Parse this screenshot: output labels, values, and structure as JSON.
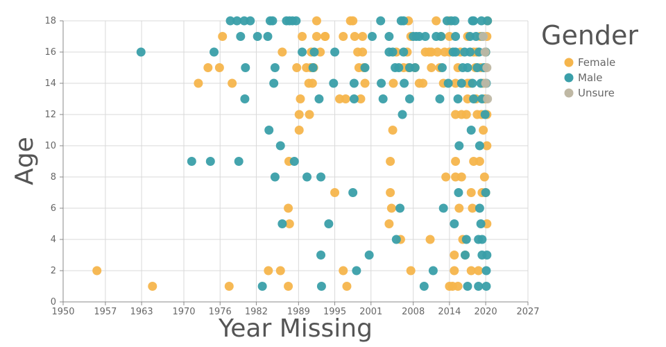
{
  "chart_data": {
    "type": "scatter",
    "xlabel": "Year Missing",
    "ylabel": "Age",
    "legend_title": "Gender",
    "legend_position": "top-right",
    "grid": true,
    "xlim": [
      1950,
      2027
    ],
    "ylim": [
      0,
      18
    ],
    "x_ticks": [
      "1950",
      "1957",
      "1963",
      "1970",
      "1976",
      "1982",
      "1989",
      "1995",
      "2001",
      "2008",
      "2014",
      "2020",
      "2027"
    ],
    "y_ticks": [
      "0",
      "2",
      "4",
      "6",
      "8",
      "10",
      "12",
      "14",
      "16",
      "18"
    ],
    "colors": {
      "Female": "#f5b54c",
      "Male": "#3a9fa9",
      "Unsure": "#bfb8a4"
    },
    "series": [
      {
        "name": "Female",
        "points": [
          [
            1955.6,
            2
          ],
          [
            1964.8,
            1
          ],
          [
            1977.5,
            1
          ],
          [
            1972.4,
            14
          ],
          [
            1974.0,
            15
          ],
          [
            1975.9,
            15
          ],
          [
            1976.4,
            17
          ],
          [
            1978.0,
            14
          ],
          [
            1984.0,
            2
          ],
          [
            1986.0,
            2
          ],
          [
            1986.3,
            16
          ],
          [
            1987.3,
            1
          ],
          [
            1987.4,
            9
          ],
          [
            1987.3,
            6
          ],
          [
            1987.5,
            5
          ],
          [
            1988.7,
            15
          ],
          [
            1989.1,
            11
          ],
          [
            1989.1,
            12
          ],
          [
            1989.3,
            13
          ],
          [
            1989.6,
            17
          ],
          [
            1990.3,
            15
          ],
          [
            1990.7,
            14
          ],
          [
            1990.8,
            12
          ],
          [
            1991.0,
            15
          ],
          [
            1991.3,
            14
          ],
          [
            1991.5,
            15
          ],
          [
            1991.1,
            16
          ],
          [
            1992.0,
            18
          ],
          [
            1992.0,
            17
          ],
          [
            1992.6,
            16
          ],
          [
            1993.4,
            17
          ],
          [
            1993.4,
            17
          ],
          [
            1995.0,
            7
          ],
          [
            1995.8,
            13
          ],
          [
            1996.4,
            2
          ],
          [
            1996.4,
            17
          ],
          [
            1996.8,
            13
          ],
          [
            1997.0,
            1
          ],
          [
            1997.6,
            18
          ],
          [
            1998.0,
            18
          ],
          [
            1998.3,
            17
          ],
          [
            1998.8,
            16
          ],
          [
            1999.0,
            15
          ],
          [
            1999.3,
            13
          ],
          [
            1999.6,
            16
          ],
          [
            1999.6,
            17
          ],
          [
            1999.8,
            15
          ],
          [
            2000.0,
            14
          ],
          [
            2004.0,
            5
          ],
          [
            2004.2,
            7
          ],
          [
            2004.2,
            9
          ],
          [
            2004.4,
            6
          ],
          [
            2004.6,
            11
          ],
          [
            2004.7,
            14
          ],
          [
            2005.2,
            16
          ],
          [
            2005.9,
            4
          ],
          [
            2006.4,
            15
          ],
          [
            2007.0,
            16
          ],
          [
            2007.2,
            15
          ],
          [
            2007.2,
            18
          ],
          [
            2007.6,
            2
          ],
          [
            2007.6,
            17
          ],
          [
            2008.3,
            15
          ],
          [
            2009.0,
            14
          ],
          [
            2009.6,
            14
          ],
          [
            2010.0,
            16
          ],
          [
            2010.6,
            16
          ],
          [
            2010.8,
            4
          ],
          [
            2011.0,
            15
          ],
          [
            2011.0,
            16
          ],
          [
            2011.8,
            18
          ],
          [
            2012.0,
            16
          ],
          [
            2012.4,
            15
          ],
          [
            2012.6,
            17
          ],
          [
            2013.0,
            14
          ],
          [
            2013.2,
            16
          ],
          [
            2013.4,
            8
          ],
          [
            2014.0,
            16
          ],
          [
            2014.0,
            18
          ],
          [
            2014.0,
            17
          ],
          [
            2014.0,
            1
          ],
          [
            2014.5,
            1
          ],
          [
            2014.8,
            2
          ],
          [
            2014.8,
            3
          ],
          [
            2015.0,
            9
          ],
          [
            2015.0,
            8
          ],
          [
            2015.0,
            14
          ],
          [
            2015.0,
            12
          ],
          [
            2015.4,
            15
          ],
          [
            2015.4,
            1
          ],
          [
            2015.6,
            6
          ],
          [
            2015.8,
            16
          ],
          [
            2016.0,
            8
          ],
          [
            2016.0,
            12
          ],
          [
            2016.2,
            4
          ],
          [
            2016.6,
            3
          ],
          [
            2016.8,
            12
          ],
          [
            2017.0,
            14
          ],
          [
            2017.0,
            17
          ],
          [
            2017.0,
            13
          ],
          [
            2017.4,
            14
          ],
          [
            2017.6,
            7
          ],
          [
            2017.6,
            2
          ],
          [
            2017.8,
            6
          ],
          [
            2018.0,
            9
          ],
          [
            2018.0,
            16
          ],
          [
            2018.3,
            15
          ],
          [
            2018.4,
            13
          ],
          [
            2018.5,
            16
          ],
          [
            2018.6,
            12
          ],
          [
            2018.8,
            2
          ],
          [
            2019.0,
            9
          ],
          [
            2019.1,
            17
          ],
          [
            2019.2,
            15
          ],
          [
            2019.3,
            12
          ],
          [
            2019.4,
            7
          ],
          [
            2019.6,
            11
          ],
          [
            2019.6,
            14
          ],
          [
            2019.8,
            8
          ],
          [
            2019.9,
            13
          ],
          [
            2020.0,
            16
          ],
          [
            2020.0,
            7
          ],
          [
            2020.0,
            15
          ],
          [
            2020.2,
            10
          ],
          [
            2020.2,
            17
          ],
          [
            2020.2,
            5
          ],
          [
            2020.2,
            12
          ],
          [
            2020.3,
            18
          ]
        ]
      },
      {
        "name": "Male",
        "points": [
          [
            1962.9,
            16
          ],
          [
            1971.3,
            9
          ],
          [
            1974.4,
            9
          ],
          [
            1975.0,
            16
          ],
          [
            1977.7,
            18
          ],
          [
            1978.8,
            18
          ],
          [
            1979.1,
            9
          ],
          [
            1979.4,
            17
          ],
          [
            1980.0,
            18
          ],
          [
            1980.2,
            15
          ],
          [
            1980.1,
            13
          ],
          [
            1981.0,
            18
          ],
          [
            1982.2,
            17
          ],
          [
            1983.0,
            1
          ],
          [
            1983.9,
            17
          ],
          [
            1984.1,
            11
          ],
          [
            1984.3,
            18
          ],
          [
            1984.7,
            18
          ],
          [
            1984.9,
            14
          ],
          [
            1985.1,
            8
          ],
          [
            1985.1,
            15
          ],
          [
            1986.0,
            10
          ],
          [
            1986.3,
            5
          ],
          [
            1987.0,
            18
          ],
          [
            1987.5,
            18
          ],
          [
            1988.0,
            18
          ],
          [
            1988.3,
            9
          ],
          [
            1988.6,
            18
          ],
          [
            1989.6,
            16
          ],
          [
            1990.4,
            8
          ],
          [
            1991.4,
            15
          ],
          [
            1991.6,
            16
          ],
          [
            1992.4,
            13
          ],
          [
            1992.7,
            3
          ],
          [
            1992.7,
            8
          ],
          [
            1992.8,
            1
          ],
          [
            1994.0,
            5
          ],
          [
            1994.8,
            14
          ],
          [
            1995.0,
            16
          ],
          [
            1998.0,
            7
          ],
          [
            1998.2,
            14
          ],
          [
            1998.6,
            2
          ],
          [
            1998.2,
            13
          ],
          [
            2000.0,
            15
          ],
          [
            2000.7,
            3
          ],
          [
            2001.2,
            17
          ],
          [
            2002.6,
            18
          ],
          [
            2002.7,
            14
          ],
          [
            2003.0,
            13
          ],
          [
            2004.0,
            16
          ],
          [
            2004.0,
            17
          ],
          [
            2004.6,
            16
          ],
          [
            2005.0,
            15
          ],
          [
            2005.2,
            4
          ],
          [
            2005.8,
            6
          ],
          [
            2005.6,
            15
          ],
          [
            2006.0,
            18
          ],
          [
            2006.2,
            12
          ],
          [
            2006.4,
            16
          ],
          [
            2006.5,
            14
          ],
          [
            2006.4,
            18
          ],
          [
            2007.4,
            13
          ],
          [
            2007.4,
            15
          ],
          [
            2008.0,
            17
          ],
          [
            2008.3,
            15
          ],
          [
            2008.5,
            17
          ],
          [
            2009.0,
            17
          ],
          [
            2009.8,
            1
          ],
          [
            2010.0,
            17
          ],
          [
            2011.3,
            2
          ],
          [
            2011.8,
            17
          ],
          [
            2012.4,
            13
          ],
          [
            2012.6,
            17
          ],
          [
            2012.8,
            15
          ],
          [
            2013.0,
            6
          ],
          [
            2013.6,
            18
          ],
          [
            2013.8,
            14
          ],
          [
            2014.3,
            18
          ],
          [
            2014.6,
            16
          ],
          [
            2014.8,
            5
          ],
          [
            2014.9,
            18
          ],
          [
            2015.0,
            16
          ],
          [
            2015.0,
            17
          ],
          [
            2015.4,
            13
          ],
          [
            2015.5,
            7
          ],
          [
            2015.6,
            10
          ],
          [
            2016.0,
            14
          ],
          [
            2016.2,
            15
          ],
          [
            2016.5,
            16
          ],
          [
            2016.6,
            3
          ],
          [
            2016.8,
            4
          ],
          [
            2017.0,
            1
          ],
          [
            2017.0,
            15
          ],
          [
            2017.4,
            16
          ],
          [
            2017.4,
            17
          ],
          [
            2017.6,
            11
          ],
          [
            2017.8,
            18
          ],
          [
            2017.8,
            14
          ],
          [
            2018.0,
            13
          ],
          [
            2018.0,
            18
          ],
          [
            2018.4,
            17
          ],
          [
            2018.6,
            15
          ],
          [
            2018.8,
            4
          ],
          [
            2018.8,
            1
          ],
          [
            2018.9,
            16
          ],
          [
            2019.0,
            6
          ],
          [
            2019.0,
            10
          ],
          [
            2019.2,
            14
          ],
          [
            2019.2,
            5
          ],
          [
            2019.3,
            18
          ],
          [
            2019.4,
            3
          ],
          [
            2019.4,
            4
          ],
          [
            2019.4,
            13
          ],
          [
            2019.5,
            17
          ],
          [
            2019.7,
            15
          ],
          [
            2019.9,
            12
          ],
          [
            2020.0,
            7
          ],
          [
            2020.0,
            16
          ],
          [
            2020.1,
            2
          ],
          [
            2020.1,
            14
          ],
          [
            2020.1,
            1
          ],
          [
            2020.2,
            3
          ],
          [
            2020.3,
            18
          ]
        ]
      },
      {
        "name": "Unsure",
        "points": [
          [
            2019.6,
            17
          ],
          [
            2019.9,
            16
          ],
          [
            2020.2,
            15
          ],
          [
            2020.0,
            14
          ],
          [
            2020.3,
            13
          ]
        ]
      }
    ]
  }
}
